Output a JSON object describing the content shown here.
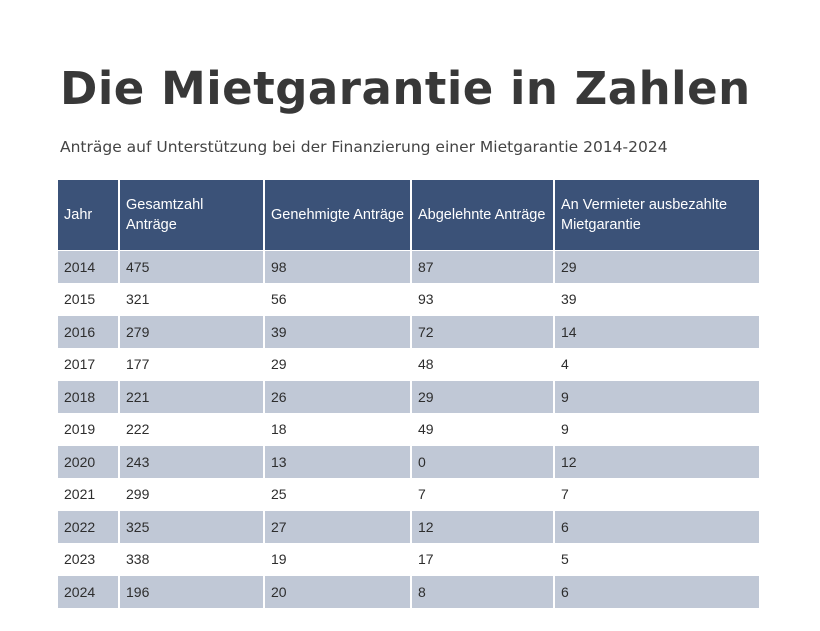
{
  "title": "Die Mietgarantie in Zahlen",
  "subtitle": "Anträge auf Unterstützung bei der Finanzierung einer Mietgarantie 2014-2024",
  "colors": {
    "header": "#3b5278",
    "stripe": "#c0c8d6"
  },
  "table": {
    "headers": [
      "Jahr",
      "Gesamtzahl Anträge",
      "Genehmigte Anträge",
      "Abgelehnte Anträge",
      "An Vermieter ausbezahlte Mietgarantie"
    ],
    "rows": [
      [
        "2014",
        "475",
        "98",
        "87",
        "29"
      ],
      [
        "2015",
        "321",
        "56",
        "93",
        "39"
      ],
      [
        "2016",
        "279",
        "39",
        "72",
        "14"
      ],
      [
        "2017",
        "177",
        "29",
        "48",
        "4"
      ],
      [
        "2018",
        "221",
        "26",
        "29",
        "9"
      ],
      [
        "2019",
        "222",
        "18",
        "49",
        "9"
      ],
      [
        "2020",
        "243",
        "13",
        "0",
        "12"
      ],
      [
        "2021",
        "299",
        "25",
        "7",
        "7"
      ],
      [
        "2022",
        "325",
        "27",
        "12",
        "6"
      ],
      [
        "2023",
        "338",
        "19",
        "17",
        "5"
      ],
      [
        "2024",
        "196",
        "20",
        "8",
        "6"
      ]
    ]
  }
}
